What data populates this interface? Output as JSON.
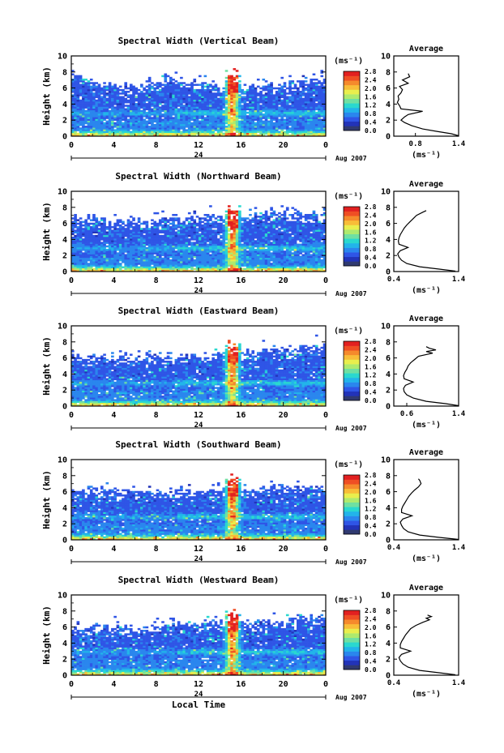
{
  "chart_data": [
    {
      "type": "heatmap",
      "title": "Spectral Width (Vertical Beam)",
      "ylabel": "Height (km)",
      "ylim": [
        0,
        10
      ],
      "yticks": [
        "0",
        "2",
        "4",
        "6",
        "8",
        "10"
      ],
      "xlim": [
        0,
        24
      ],
      "xticks": [
        "0",
        "4",
        "8",
        "12",
        "16",
        "20",
        "0"
      ],
      "date_label": "24",
      "month_label": "Aug 2007",
      "colorbar": {
        "unit": "(ms⁻¹)",
        "range": [
          0.0,
          2.8
        ],
        "ticks": [
          "2.8",
          "2.4",
          "2.0",
          "1.6",
          "1.2",
          "0.8",
          "0.4",
          "0.0"
        ]
      },
      "average": {
        "title": "Average",
        "xlabel": "(ms⁻¹)",
        "xlim": [
          0.5,
          1.4
        ],
        "xticks": [
          "0.8",
          "1.4"
        ],
        "yticks": [
          "0",
          "2",
          "4",
          "6",
          "8",
          "10"
        ],
        "profile": [
          [
            1.4,
            0.05
          ],
          [
            1.3,
            0.3
          ],
          [
            1.1,
            0.6
          ],
          [
            0.9,
            0.9
          ],
          [
            0.75,
            1.3
          ],
          [
            0.65,
            1.7
          ],
          [
            0.6,
            2.0
          ],
          [
            0.65,
            2.4
          ],
          [
            0.7,
            2.7
          ],
          [
            0.9,
            3.1
          ],
          [
            0.6,
            3.4
          ],
          [
            0.58,
            3.8
          ],
          [
            0.55,
            4.2
          ],
          [
            0.57,
            4.6
          ],
          [
            0.56,
            5.0
          ],
          [
            0.6,
            5.4
          ],
          [
            0.62,
            5.8
          ],
          [
            0.58,
            6.2
          ],
          [
            0.7,
            6.6
          ],
          [
            0.62,
            7.0
          ],
          [
            0.72,
            7.4
          ],
          [
            0.7,
            7.8
          ]
        ]
      },
      "tops": [
        7.5,
        6.2,
        7.2,
        6.0,
        6.4,
        7.4
      ]
    },
    {
      "type": "heatmap",
      "title": "Spectral Width (Northward Beam)",
      "ylabel": "Height (km)",
      "ylim": [
        0,
        10
      ],
      "yticks": [
        "0",
        "2",
        "4",
        "6",
        "8",
        "10"
      ],
      "xlim": [
        0,
        24
      ],
      "xticks": [
        "0",
        "4",
        "8",
        "12",
        "16",
        "20",
        "0"
      ],
      "date_label": "24",
      "month_label": "Aug 2007",
      "colorbar": {
        "unit": "(ms⁻¹)",
        "range": [
          0.0,
          2.8
        ],
        "ticks": [
          "2.8",
          "2.4",
          "2.0",
          "1.6",
          "1.2",
          "0.8",
          "0.4",
          "0.0"
        ]
      },
      "average": {
        "title": "Average",
        "xlabel": "(ms⁻¹)",
        "xlim": [
          0.4,
          1.4
        ],
        "xticks": [
          "0.4",
          "1.4"
        ],
        "yticks": [
          "0",
          "2",
          "4",
          "6",
          "8",
          "10"
        ],
        "profile": [
          [
            1.35,
            0.05
          ],
          [
            1.1,
            0.3
          ],
          [
            0.8,
            0.6
          ],
          [
            0.6,
            1.0
          ],
          [
            0.52,
            1.4
          ],
          [
            0.48,
            1.8
          ],
          [
            0.46,
            2.2
          ],
          [
            0.5,
            2.6
          ],
          [
            0.62,
            3.0
          ],
          [
            0.48,
            3.4
          ],
          [
            0.47,
            3.8
          ],
          [
            0.48,
            4.2
          ],
          [
            0.5,
            4.6
          ],
          [
            0.53,
            5.0
          ],
          [
            0.56,
            5.4
          ],
          [
            0.6,
            5.8
          ],
          [
            0.65,
            6.2
          ],
          [
            0.7,
            6.6
          ],
          [
            0.75,
            7.0
          ],
          [
            0.85,
            7.4
          ],
          [
            0.9,
            7.6
          ]
        ]
      },
      "tops": [
        7.0,
        6.3,
        6.7,
        6.8,
        7.3,
        7.5
      ]
    },
    {
      "type": "heatmap",
      "title": "Spectral Width (Eastward Beam)",
      "ylabel": "Height (km)",
      "ylim": [
        0,
        10
      ],
      "yticks": [
        "0",
        "2",
        "4",
        "6",
        "8",
        "10"
      ],
      "xlim": [
        0,
        24
      ],
      "xticks": [
        "0",
        "4",
        "8",
        "12",
        "16",
        "20",
        "0"
      ],
      "date_label": "24",
      "month_label": "Aug 2007",
      "colorbar": {
        "unit": "(ms⁻¹)",
        "range": [
          0.0,
          2.8
        ],
        "ticks": [
          "2.8",
          "2.4",
          "2.0",
          "1.6",
          "1.2",
          "0.8",
          "0.4",
          "0.0"
        ]
      },
      "average": {
        "title": "Average",
        "xlabel": "(ms⁻¹)",
        "xlim": [
          0.4,
          1.4
        ],
        "xticks": [
          "0.6",
          "1.4"
        ],
        "yticks": [
          "0",
          "2",
          "4",
          "6",
          "8",
          "10"
        ],
        "profile": [
          [
            1.4,
            0.05
          ],
          [
            1.2,
            0.3
          ],
          [
            0.9,
            0.6
          ],
          [
            0.7,
            1.0
          ],
          [
            0.6,
            1.4
          ],
          [
            0.56,
            1.8
          ],
          [
            0.55,
            2.2
          ],
          [
            0.58,
            2.6
          ],
          [
            0.7,
            3.0
          ],
          [
            0.56,
            3.4
          ],
          [
            0.55,
            3.8
          ],
          [
            0.57,
            4.2
          ],
          [
            0.6,
            4.6
          ],
          [
            0.62,
            5.0
          ],
          [
            0.66,
            5.4
          ],
          [
            0.72,
            5.8
          ],
          [
            0.78,
            6.2
          ],
          [
            1.0,
            6.6
          ],
          [
            0.9,
            6.8
          ],
          [
            1.05,
            7.0
          ],
          [
            0.95,
            7.2
          ],
          [
            0.9,
            7.4
          ]
        ]
      },
      "tops": [
        6.3,
        6.1,
        6.0,
        6.5,
        7.0,
        7.6
      ]
    },
    {
      "type": "heatmap",
      "title": "Spectral Width (Southward Beam)",
      "ylabel": "Height (km)",
      "ylim": [
        0,
        10
      ],
      "yticks": [
        "0",
        "2",
        "4",
        "6",
        "8",
        "10"
      ],
      "xlim": [
        0,
        24
      ],
      "xticks": [
        "0",
        "4",
        "8",
        "12",
        "16",
        "20",
        "0"
      ],
      "date_label": "24",
      "month_label": "Aug 2007",
      "colorbar": {
        "unit": "(ms⁻¹)",
        "range": [
          0.0,
          2.8
        ],
        "ticks": [
          "2.8",
          "2.4",
          "2.0",
          "1.6",
          "1.2",
          "0.8",
          "0.4",
          "0.0"
        ]
      },
      "average": {
        "title": "Average",
        "xlabel": "(ms⁻¹)",
        "xlim": [
          0.4,
          1.4
        ],
        "xticks": [
          "0.4",
          "1.4"
        ],
        "yticks": [
          "0",
          "2",
          "4",
          "6",
          "8",
          "10"
        ],
        "profile": [
          [
            1.4,
            0.05
          ],
          [
            1.1,
            0.3
          ],
          [
            0.8,
            0.6
          ],
          [
            0.62,
            1.0
          ],
          [
            0.55,
            1.4
          ],
          [
            0.52,
            1.8
          ],
          [
            0.5,
            2.2
          ],
          [
            0.54,
            2.6
          ],
          [
            0.68,
            3.0
          ],
          [
            0.52,
            3.4
          ],
          [
            0.52,
            3.8
          ],
          [
            0.54,
            4.2
          ],
          [
            0.57,
            4.6
          ],
          [
            0.6,
            5.0
          ],
          [
            0.63,
            5.4
          ],
          [
            0.67,
            5.8
          ],
          [
            0.72,
            6.2
          ],
          [
            0.78,
            6.6
          ],
          [
            0.82,
            7.0
          ],
          [
            0.8,
            7.4
          ],
          [
            0.78,
            7.6
          ]
        ]
      },
      "tops": [
        6.0,
        6.2,
        5.9,
        6.2,
        6.5,
        6.4
      ]
    },
    {
      "type": "heatmap",
      "title": "Spectral Width (Westward Beam)",
      "ylabel": "Height (km)",
      "ylim": [
        0,
        10
      ],
      "yticks": [
        "0",
        "2",
        "4",
        "6",
        "8",
        "10"
      ],
      "xlim": [
        0,
        24
      ],
      "xticks": [
        "0",
        "4",
        "8",
        "12",
        "16",
        "20",
        "0"
      ],
      "date_label": "24",
      "month_label": "Aug 2007",
      "xlabel": "Local Time",
      "colorbar": {
        "unit": "(ms⁻¹)",
        "range": [
          0.0,
          2.8
        ],
        "ticks": [
          "2.8",
          "2.4",
          "2.0",
          "1.6",
          "1.2",
          "0.8",
          "0.4",
          "0.0"
        ]
      },
      "average": {
        "title": "Average",
        "xlabel": "(ms⁻¹)",
        "xlim": [
          0.4,
          1.4
        ],
        "xticks": [
          "0.4",
          "1.4"
        ],
        "yticks": [
          "0",
          "2",
          "4",
          "6",
          "8",
          "10"
        ],
        "profile": [
          [
            1.35,
            0.05
          ],
          [
            1.1,
            0.3
          ],
          [
            0.8,
            0.6
          ],
          [
            0.62,
            1.0
          ],
          [
            0.54,
            1.4
          ],
          [
            0.5,
            1.8
          ],
          [
            0.48,
            2.2
          ],
          [
            0.52,
            2.6
          ],
          [
            0.66,
            3.0
          ],
          [
            0.5,
            3.4
          ],
          [
            0.5,
            3.8
          ],
          [
            0.52,
            4.2
          ],
          [
            0.55,
            4.6
          ],
          [
            0.58,
            5.0
          ],
          [
            0.62,
            5.4
          ],
          [
            0.66,
            5.8
          ],
          [
            0.74,
            6.2
          ],
          [
            0.85,
            6.6
          ],
          [
            0.95,
            6.9
          ],
          [
            0.9,
            7.1
          ],
          [
            0.98,
            7.3
          ],
          [
            0.92,
            7.5
          ]
        ]
      },
      "tops": [
        6.2,
        6.0,
        6.4,
        6.6,
        6.8,
        7.4
      ]
    }
  ],
  "colors": {
    "scale": [
      "#303a70",
      "#2233b8",
      "#2f55e6",
      "#2a86ee",
      "#22b4ea",
      "#2ad8cf",
      "#6fe0a2",
      "#aeea6e",
      "#e9ee4d",
      "#f8bd38",
      "#f58a2c",
      "#ef4e24",
      "#e22020"
    ],
    "profile_line": "#000000"
  }
}
